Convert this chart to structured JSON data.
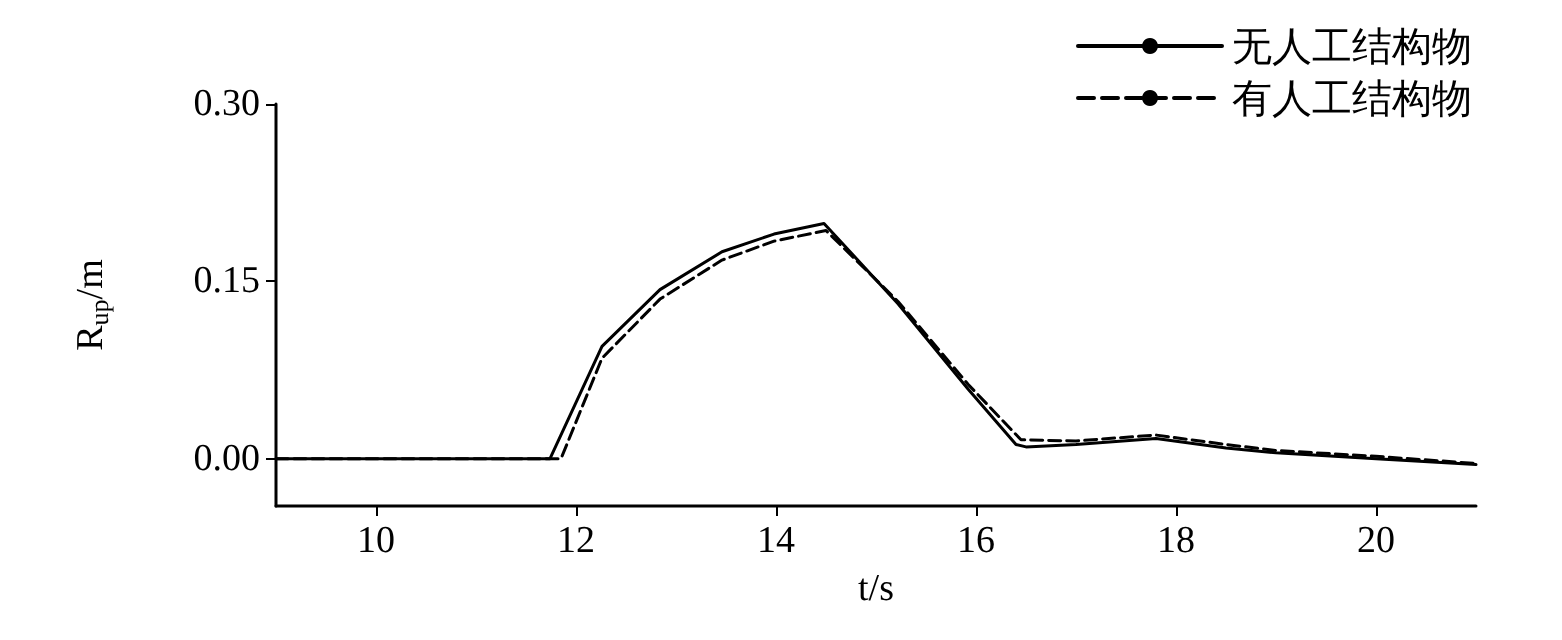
{
  "chart_data": {
    "type": "line",
    "xlabel": "t/s",
    "ylabel": "R$_{up}$/m",
    "xlim": [
      9,
      21
    ],
    "xticks": [
      10,
      12,
      14,
      16,
      18,
      20
    ],
    "ylim": [
      -0.04,
      0.3
    ],
    "yticks": [
      {
        "value": 0,
        "label": "0.00"
      },
      {
        "value": 0.15,
        "label": "0.15"
      },
      {
        "value": 0.3,
        "label": "0.30"
      }
    ],
    "grid": false,
    "legend": "top right",
    "marker": "none",
    "series": [
      {
        "name": "无人工结构物",
        "color": "#000000",
        "line_style": "solid",
        "x": [
          9,
          11.74,
          12.26,
          12.84,
          13.46,
          13.98,
          14.48,
          15.22,
          15.92,
          16.4,
          16.5,
          17.0,
          17.8,
          18.5,
          19.0,
          20.0,
          21.0
        ],
        "values": [
          0,
          0,
          0.095,
          0.143,
          0.175,
          0.19,
          0.199,
          0.131,
          0.059,
          0.012,
          0.01,
          0.012,
          0.017,
          0.009,
          0.005,
          0,
          -0.005
        ]
      },
      {
        "name": "有人工结构物",
        "color": "#000000",
        "line_style": "dashed",
        "x": [
          9,
          11.85,
          12.26,
          12.84,
          13.46,
          13.98,
          14.5,
          15.22,
          15.92,
          16.45,
          17.0,
          17.8,
          18.5,
          19.0,
          20.0,
          21.0
        ],
        "values": [
          0,
          0,
          0.085,
          0.135,
          0.168,
          0.184,
          0.193,
          0.133,
          0.063,
          0.016,
          0.015,
          0.02,
          0.012,
          0.007,
          0.002,
          -0.004
        ]
      }
    ]
  }
}
